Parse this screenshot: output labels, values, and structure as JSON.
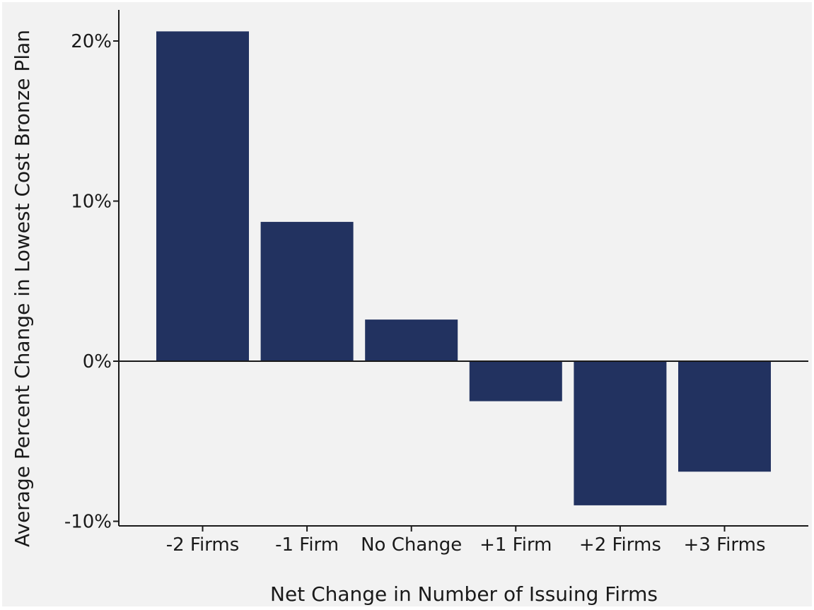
{
  "chart_data": {
    "type": "bar",
    "title": "",
    "xlabel": "Net Change in Number of Issuing Firms",
    "ylabel": "Average Percent Change in Lowest Cost Bronze Plan",
    "categories": [
      "-2 Firms",
      "-1 Firm",
      "No Change",
      "+1 Firm",
      "+2 Firms",
      "+3 Firms"
    ],
    "values": [
      20.6,
      8.7,
      2.6,
      -2.5,
      -9.0,
      -6.9
    ],
    "unit": "%",
    "ylim": [
      -10.4,
      22.0
    ],
    "yticks": [
      {
        "value": 20,
        "label": "20%"
      },
      {
        "value": 10,
        "label": "10%"
      },
      {
        "value": 0,
        "label": "0%"
      },
      {
        "value": -10,
        "label": "-10%"
      }
    ],
    "zero_line": true,
    "grid": false,
    "legend": "none"
  },
  "colors": {
    "background": "#f2f2f2",
    "bar": "#223260",
    "axis": "#1a1a1a"
  }
}
